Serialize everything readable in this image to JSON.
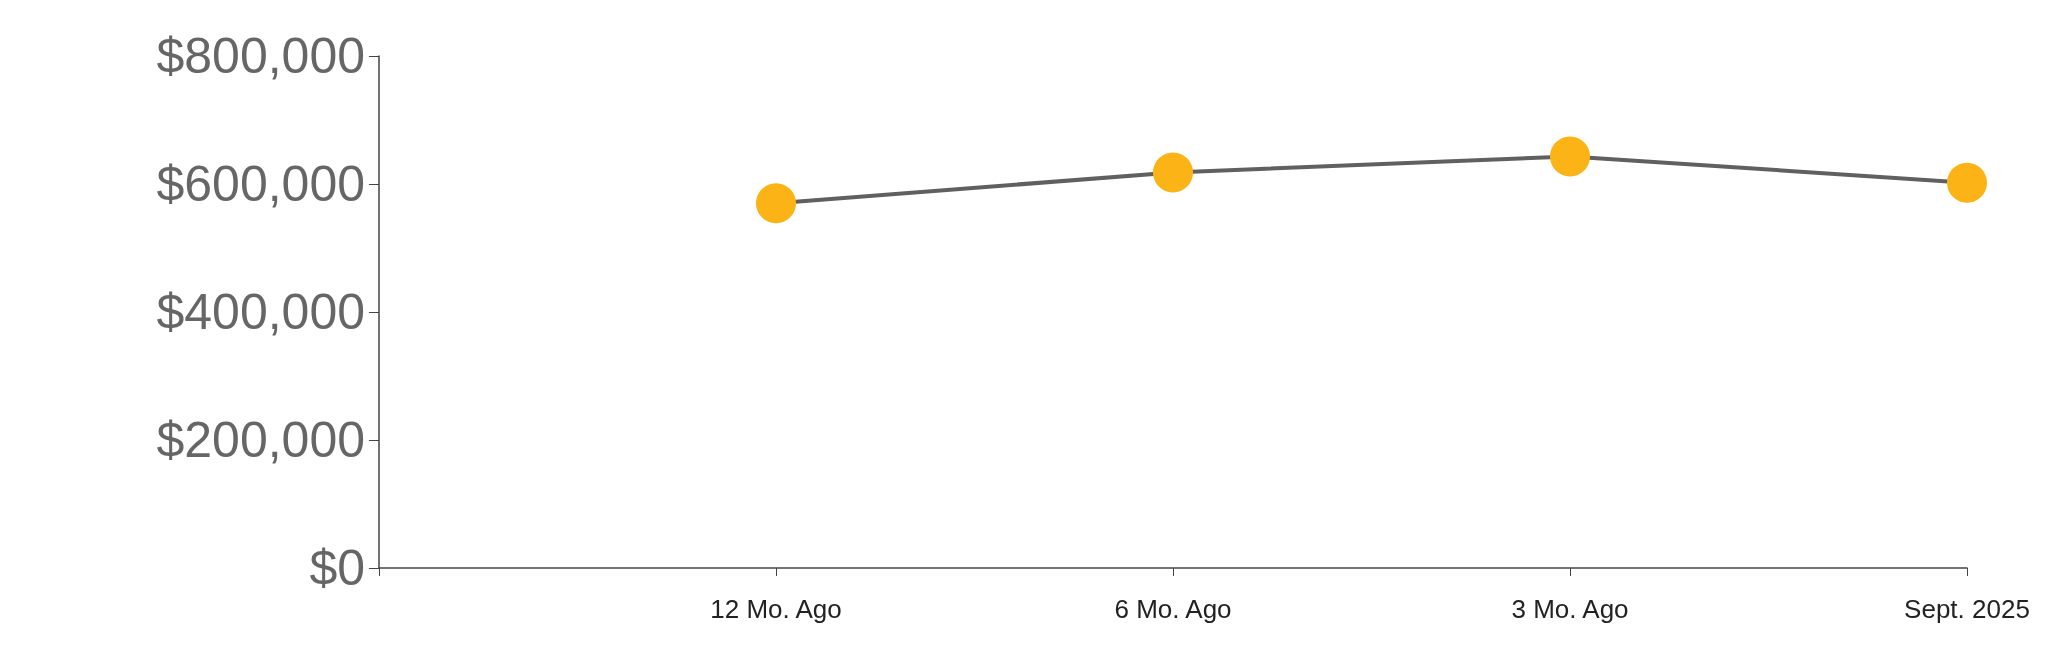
{
  "chart_data": {
    "type": "line",
    "categories": [
      null,
      "12 Mo. Ago",
      "6 Mo. Ago",
      "3 Mo. Ago",
      "Sept. 2025"
    ],
    "series": [
      {
        "color": "#606060",
        "colors": [
          null,
          "#fbb316",
          "#fbb316",
          "#fbb316",
          "#fbb316"
        ],
        "values": [
          null,
          570000,
          618000,
          643000,
          602000
        ]
      }
    ],
    "marker": "circle",
    "ylim": [
      0,
      800000
    ],
    "yticks": [
      {
        "value": 0,
        "label": "$0"
      },
      {
        "value": 200000,
        "label": "$200,000"
      },
      {
        "value": 400000,
        "label": "$400,000"
      },
      {
        "value": 600000,
        "label": "$600,000"
      },
      {
        "value": 800000,
        "label": "$800,000"
      }
    ],
    "grid": false
  }
}
